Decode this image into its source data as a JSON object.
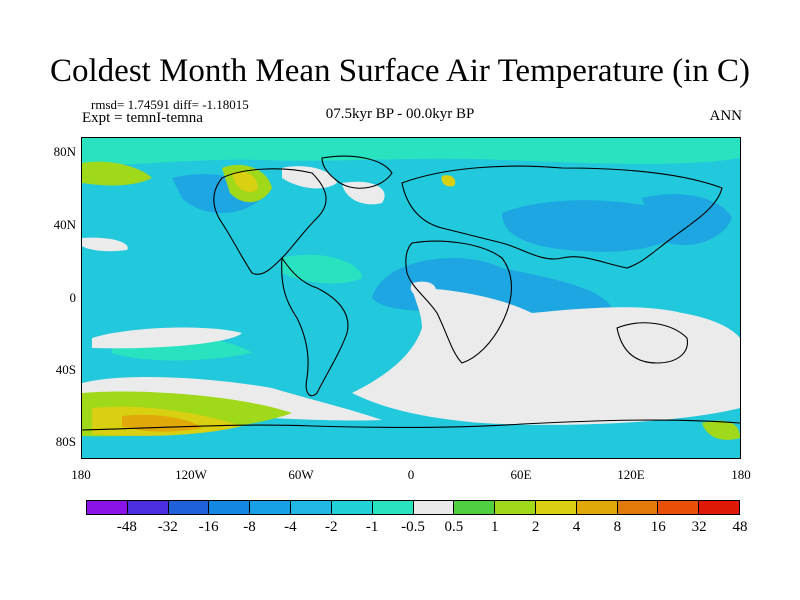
{
  "title": "Coldest Month Mean Surface Air Temperature (in C)",
  "stats": "rmsd= 1.74591  diff= -1.18015",
  "experiment": "Expt = temnI-temna",
  "period": "07.5kyr BP - 00.0kyr BP",
  "season": "ANN",
  "lat_ticks": [
    "80N",
    "40N",
    "0",
    "40S",
    "80S"
  ],
  "lon_ticks": [
    "180",
    "120W",
    "60W",
    "0",
    "60E",
    "120E",
    "180"
  ],
  "colorbar": {
    "labels": [
      "-48",
      "-32",
      "-16",
      "-8",
      "-4",
      "-2",
      "-1",
      "-0.5",
      "0.5",
      "1",
      "2",
      "4",
      "8",
      "16",
      "32",
      "48"
    ],
    "colors": [
      "#8a14e8",
      "#4a2ee0",
      "#2060d8",
      "#1488e0",
      "#18a0e6",
      "#22b8e6",
      "#22d0d8",
      "#28e2c0",
      "#eaeaea",
      "#50d040",
      "#a0d81a",
      "#d8d010",
      "#e0a808",
      "#e07a08",
      "#e85008",
      "#e01808"
    ]
  }
}
